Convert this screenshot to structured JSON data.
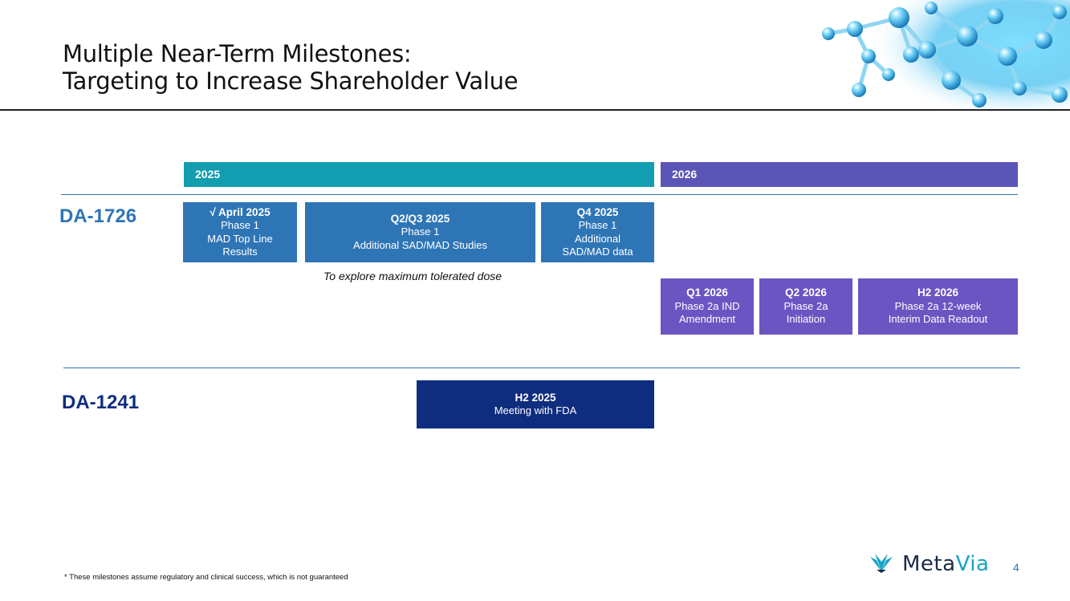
{
  "title": {
    "line1": "Multiple Near-Term Milestones:",
    "line2": "Targeting to Increase Shareholder Value"
  },
  "timeline": {
    "years": [
      {
        "label": "2025",
        "color": "#129db0"
      },
      {
        "label": "2026",
        "color": "#5c55b8"
      }
    ]
  },
  "drugs": {
    "da1726": {
      "name": "DA-1726",
      "color": "#2e75b6",
      "milestones": [
        {
          "header": "√ April 2025",
          "lines": [
            "Phase 1",
            "MAD Top Line",
            "Results"
          ]
        },
        {
          "header": "Q2/Q3 2025",
          "lines": [
            "Phase 1",
            "Additional SAD/MAD Studies"
          ]
        },
        {
          "header": "Q4 2025",
          "lines": [
            "Phase 1",
            "Additional",
            "SAD/MAD data"
          ]
        },
        {
          "header": "Q1 2026",
          "lines": [
            "Phase 2a IND",
            "Amendment"
          ]
        },
        {
          "header": "Q2 2026",
          "lines": [
            "Phase 2a",
            "Initiation"
          ]
        },
        {
          "header": "H2 2026",
          "lines": [
            "Phase 2a 12-week",
            "Interim Data Readout"
          ]
        }
      ],
      "note": "To explore maximum tolerated dose"
    },
    "da1241": {
      "name": "DA-1241",
      "color": "#0f2d7f",
      "milestones": [
        {
          "header": "H2 2025",
          "lines": [
            "Meeting with FDA"
          ]
        }
      ]
    }
  },
  "footnote": "* These milestones assume regulatory and clinical success, which is not guaranteed",
  "logo": {
    "part1": "Meta",
    "part2": "Via"
  },
  "page_number": "4"
}
